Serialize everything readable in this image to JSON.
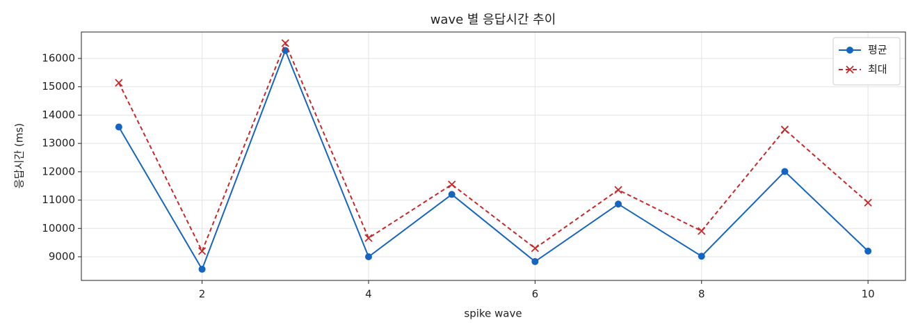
{
  "chart_data": {
    "type": "line",
    "title": "wave 별 응답시간 추이",
    "x_label": "spike wave",
    "y_label": "응답시간 (ms)",
    "x": [
      1,
      2,
      3,
      4,
      5,
      6,
      7,
      8,
      9,
      10
    ],
    "series": [
      {
        "name": "평균",
        "color": "#1565c0",
        "marker": "o",
        "dash": false,
        "values": [
          13580,
          8560,
          16280,
          9000,
          11200,
          8830,
          10860,
          9020,
          12010,
          9200
        ]
      },
      {
        "name": "최대",
        "color": "#c62828",
        "marker": "x",
        "dash": true,
        "values": [
          15140,
          9200,
          16540,
          9660,
          11550,
          9300,
          11360,
          9910,
          13490,
          10910
        ]
      }
    ],
    "xlim": [
      0.55,
      10.45
    ],
    "xticks": [
      2,
      4,
      6,
      8,
      10
    ],
    "ylim": [
      8165,
      16933
    ],
    "yticks": [
      9000,
      10000,
      11000,
      12000,
      13000,
      14000,
      15000,
      16000
    ],
    "grid": true,
    "legend": "upper right"
  }
}
